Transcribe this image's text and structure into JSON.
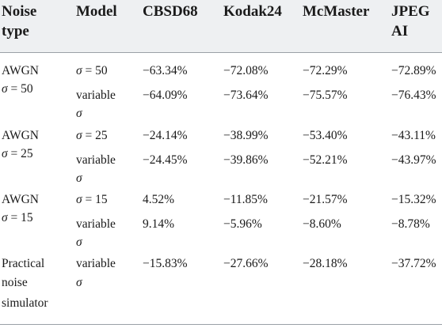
{
  "headers": {
    "noise_type_line1": "Noise",
    "noise_type_line2": "type",
    "model": "Model",
    "cbsd68": "CBSD68",
    "kodak24": "Kodak24",
    "mcmaster": "McMaster",
    "jpegai_line1": "JPEG",
    "jpegai_line2": "AI"
  },
  "groups": [
    {
      "noise_line1": "AWGN",
      "noise_line2_sym": "σ",
      "noise_line2_rest": " = 50",
      "rows": [
        {
          "model_sym": "σ",
          "model_rest": " = 50",
          "model_line2": "",
          "cbsd68": "−63.34%",
          "kodak24": "−72.08%",
          "mcmaster": "−72.29%",
          "jpegai": "−72.89%"
        },
        {
          "model_line1": "variable",
          "model_line2": "σ",
          "cbsd68": "−64.09%",
          "kodak24": "−73.64%",
          "mcmaster": "−75.57%",
          "jpegai": "−76.43%"
        }
      ]
    },
    {
      "noise_line1": "AWGN",
      "noise_line2_sym": "σ",
      "noise_line2_rest": " = 25",
      "rows": [
        {
          "model_sym": "σ",
          "model_rest": " = 25",
          "cbsd68": "−24.14%",
          "kodak24": "−38.99%",
          "mcmaster": "−53.40%",
          "jpegai": "−43.11%"
        },
        {
          "model_line1": "variable",
          "model_line2": "σ",
          "cbsd68": "−24.45%",
          "kodak24": "−39.86%",
          "mcmaster": "−52.21%",
          "jpegai": "−43.97%"
        }
      ]
    },
    {
      "noise_line1": "AWGN",
      "noise_line2_sym": "σ",
      "noise_line2_rest": " = 15",
      "rows": [
        {
          "model_sym": "σ",
          "model_rest": " = 15",
          "cbsd68": "4.52%",
          "kodak24": "−11.85%",
          "mcmaster": "−21.57%",
          "jpegai": "−15.32%"
        },
        {
          "model_line1": "variable",
          "model_line2": "σ",
          "cbsd68": "9.14%",
          "kodak24": "−5.96%",
          "mcmaster": "−8.60%",
          "jpegai": "−8.78%"
        }
      ]
    },
    {
      "noise_line1": "Practical",
      "noise_line2": "noise",
      "noise_line3": "simulator",
      "rows": [
        {
          "model_line1": "variable",
          "model_line2": "σ",
          "cbsd68": "−15.83%",
          "kodak24": "−27.66%",
          "mcmaster": "−28.18%",
          "jpegai": "−37.72%"
        }
      ]
    }
  ]
}
